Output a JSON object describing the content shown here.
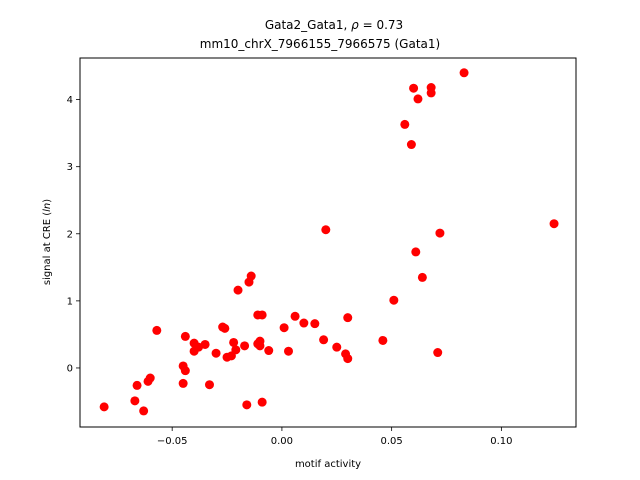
{
  "chart_data": {
    "type": "scatter",
    "title_line1": "Gata2_Gata1, ",
    "title_rho_symbol": "ρ",
    "title_rho_value": " = 0.73",
    "title_line2": "mm10_chrX_7966155_7966575 (Gata1)",
    "xlabel": "motif activity",
    "ylabel_prefix": "signal at CRE (",
    "ylabel_italic": "ln",
    "ylabel_suffix": ")",
    "xlim": [
      -0.092,
      0.134
    ],
    "ylim": [
      -0.88,
      4.62
    ],
    "xticks": [
      {
        "value": -0.05,
        "label": "−0.05"
      },
      {
        "value": 0.0,
        "label": "0.00"
      },
      {
        "value": 0.05,
        "label": "0.05"
      },
      {
        "value": 0.1,
        "label": "0.10"
      }
    ],
    "yticks": [
      {
        "value": 0,
        "label": "0"
      },
      {
        "value": 1,
        "label": "1"
      },
      {
        "value": 2,
        "label": "2"
      },
      {
        "value": 3,
        "label": "3"
      },
      {
        "value": 4,
        "label": "4"
      }
    ],
    "grid": false,
    "marker_color": "#ff0000",
    "points": [
      [
        -0.081,
        -0.58
      ],
      [
        -0.067,
        -0.49
      ],
      [
        -0.066,
        -0.26
      ],
      [
        -0.063,
        -0.64
      ],
      [
        -0.061,
        -0.2
      ],
      [
        -0.06,
        -0.15
      ],
      [
        -0.057,
        0.56
      ],
      [
        -0.045,
        0.03
      ],
      [
        -0.045,
        -0.23
      ],
      [
        -0.044,
        0.47
      ],
      [
        -0.044,
        -0.04
      ],
      [
        -0.04,
        0.37
      ],
      [
        -0.04,
        0.25
      ],
      [
        -0.038,
        0.31
      ],
      [
        -0.035,
        0.35
      ],
      [
        -0.033,
        -0.25
      ],
      [
        -0.03,
        0.22
      ],
      [
        -0.027,
        0.61
      ],
      [
        -0.026,
        0.59
      ],
      [
        -0.025,
        0.16
      ],
      [
        -0.023,
        0.18
      ],
      [
        -0.022,
        0.38
      ],
      [
        -0.021,
        0.27
      ],
      [
        -0.02,
        1.16
      ],
      [
        -0.017,
        0.33
      ],
      [
        -0.016,
        -0.55
      ],
      [
        -0.015,
        1.28
      ],
      [
        -0.014,
        1.37
      ],
      [
        -0.011,
        0.79
      ],
      [
        -0.011,
        0.36
      ],
      [
        -0.01,
        0.4
      ],
      [
        -0.01,
        0.33
      ],
      [
        -0.009,
        0.79
      ],
      [
        -0.009,
        -0.51
      ],
      [
        -0.006,
        0.26
      ],
      [
        0.001,
        0.6
      ],
      [
        0.003,
        0.25
      ],
      [
        0.006,
        0.77
      ],
      [
        0.01,
        0.67
      ],
      [
        0.015,
        0.66
      ],
      [
        0.019,
        0.42
      ],
      [
        0.02,
        2.06
      ],
      [
        0.025,
        0.31
      ],
      [
        0.029,
        0.21
      ],
      [
        0.03,
        0.75
      ],
      [
        0.03,
        0.14
      ],
      [
        0.046,
        0.41
      ],
      [
        0.051,
        1.01
      ],
      [
        0.056,
        3.63
      ],
      [
        0.059,
        3.33
      ],
      [
        0.06,
        4.17
      ],
      [
        0.061,
        1.73
      ],
      [
        0.062,
        4.01
      ],
      [
        0.064,
        1.35
      ],
      [
        0.068,
        4.18
      ],
      [
        0.068,
        4.1
      ],
      [
        0.071,
        0.23
      ],
      [
        0.072,
        2.01
      ],
      [
        0.083,
        4.4
      ],
      [
        0.124,
        2.15
      ]
    ]
  }
}
